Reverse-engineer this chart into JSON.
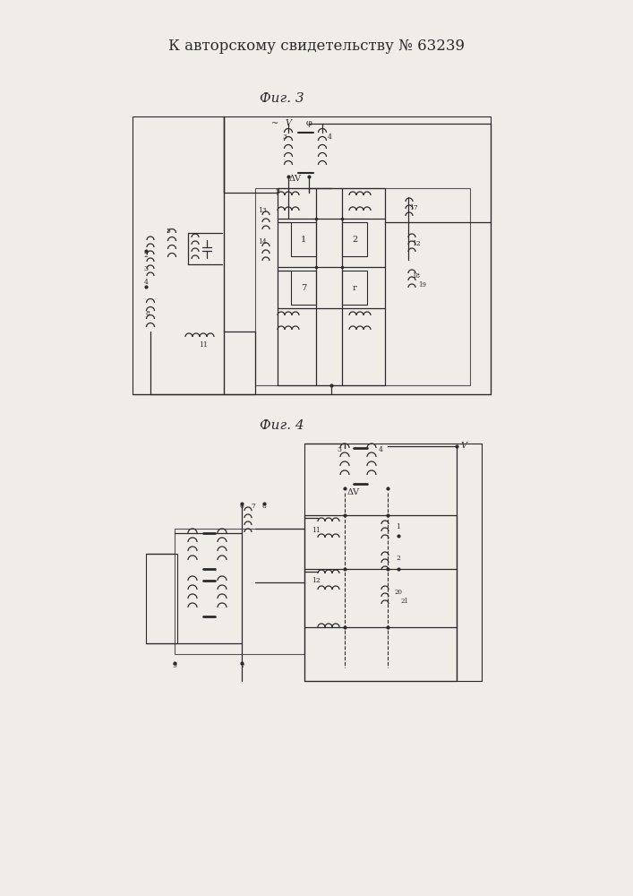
{
  "title_text": "К авторскому свидетельству № 63239",
  "fig3_label": "Фиг. 3",
  "fig4_label": "Фиг. 4",
  "bg_color": "#f0ede8",
  "line_color": "#2a2a2a",
  "fig_width": 7.07,
  "fig_height": 10.0,
  "dpi": 100
}
